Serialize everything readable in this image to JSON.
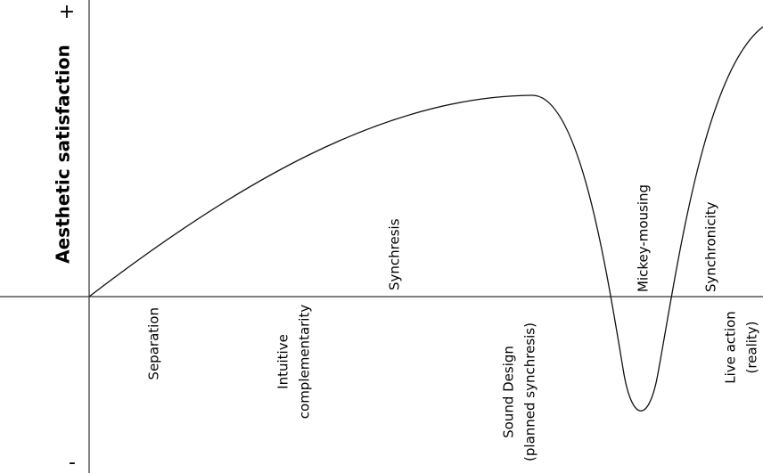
{
  "axis": {
    "y_label": "Aesthetic satisfaction",
    "plus": "+",
    "minus": "-"
  },
  "labels_below": [
    {
      "lines": [
        "Separation"
      ]
    },
    {
      "lines": [
        "Intuitive",
        "complementarity"
      ]
    },
    {
      "lines": [
        "Sound Design",
        "(planned synchresis)"
      ]
    },
    {
      "lines": [
        "Live action",
        "(reality)"
      ]
    }
  ],
  "labels_above": [
    "Synchresis",
    "Mickey-mousing",
    "Synchronicity"
  ]
}
